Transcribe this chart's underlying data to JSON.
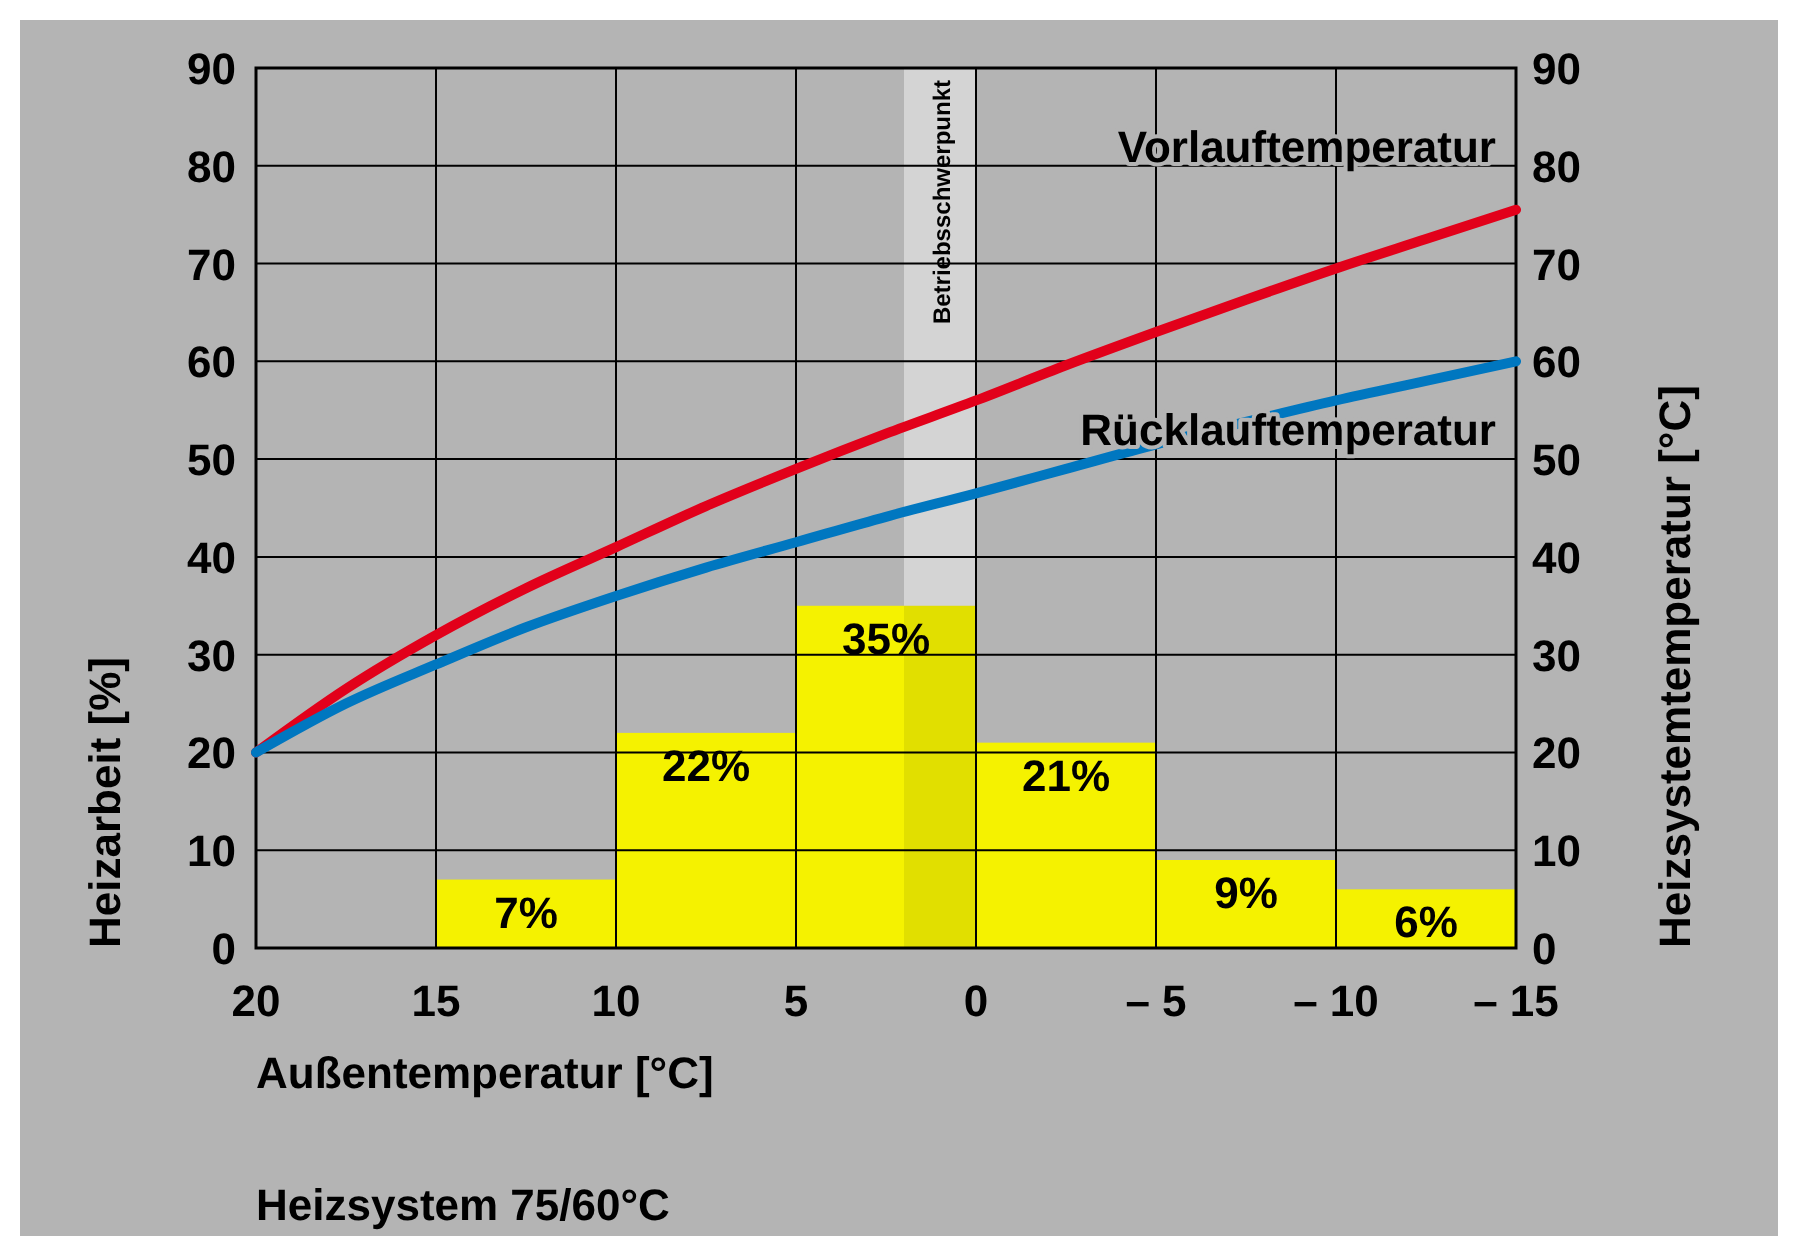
{
  "chart_data": {
    "type": "histogram",
    "xlabel": "Außentemperatur [°C]",
    "ylabel": "Heizarbeit [%]",
    "y2label": "Heizsystemtemperatur [°C]",
    "xlim": [
      20,
      -15
    ],
    "xticks": [
      20,
      15,
      10,
      5,
      0,
      {
        "value": -5,
        "label": "– 5"
      },
      {
        "value": -10,
        "label": "– 10"
      },
      {
        "value": -15,
        "label": "– 15"
      }
    ],
    "ylim": [
      0,
      90
    ],
    "yticks": [
      0,
      10,
      20,
      30,
      40,
      50,
      60,
      70,
      80,
      90
    ],
    "y2lim": [
      0,
      90
    ],
    "y2ticks": [
      0,
      10,
      20,
      30,
      40,
      50,
      60,
      70,
      80,
      90
    ],
    "grid": true,
    "series": [
      {
        "color": "#f5f200",
        "bins": [
          15,
          10,
          5,
          0,
          -5,
          -10,
          -15
        ],
        "values": [
          7,
          22,
          35,
          21,
          9,
          6
        ],
        "value_labels": [
          "7%",
          "22%",
          "35%",
          "21%",
          "9%",
          "6%"
        ]
      },
      {
        "type": "line",
        "name": "Vorlauftemperatur",
        "axis": "y2",
        "color": "#e2001a",
        "x": [
          20,
          17.5,
          15,
          12.5,
          10,
          7.5,
          5,
          2.5,
          0,
          -2.5,
          -5,
          -7.5,
          -10,
          -12.5,
          -15
        ],
        "values": [
          20,
          26.5,
          32,
          36.8,
          41,
          45.2,
          49,
          52.6,
          56,
          59.6,
          63,
          66.3,
          69.5,
          72.5,
          75.5
        ]
      },
      {
        "type": "line",
        "name": "Rücklauftemperatur",
        "axis": "y2",
        "color": "#0077c0",
        "x": [
          20,
          17.5,
          15,
          12.5,
          10,
          7.5,
          5,
          2.5,
          0,
          -2.5,
          -5,
          -7.5,
          -10,
          -12.5,
          -15
        ],
        "values": [
          20,
          25,
          29,
          32.8,
          36,
          38.9,
          41.5,
          44.1,
          46.5,
          49,
          51.5,
          53.8,
          56,
          58,
          60
        ]
      }
    ],
    "bands": [
      {
        "axis": "x",
        "from": 2,
        "to": 0,
        "label": "Betriebsschwerpunkt",
        "color": "#e6e6e6"
      }
    ],
    "annotations": [
      "Heizsystem 75/60°C"
    ]
  }
}
